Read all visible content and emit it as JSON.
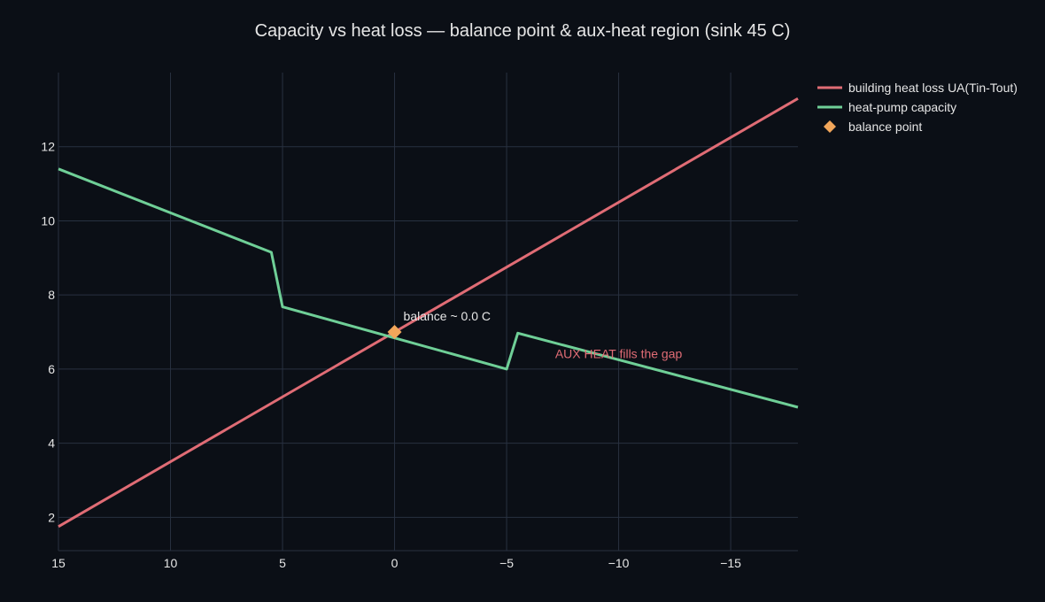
{
  "chart_data": {
    "type": "line",
    "title": "Capacity vs heat loss — balance point & aux-heat region (sink 45 C)",
    "xlabel": "",
    "ylabel": "",
    "x_reversed": true,
    "xlim": [
      15,
      -18
    ],
    "ylim": [
      1.1,
      14
    ],
    "x_ticks": [
      15,
      10,
      5,
      0,
      -5,
      -10,
      -15
    ],
    "x_tick_labels": [
      "15",
      "10",
      "5",
      "0",
      "−5",
      "−10",
      "−15"
    ],
    "y_ticks": [
      2,
      4,
      6,
      8,
      10,
      12
    ],
    "y_tick_labels": [
      "2",
      "4",
      "6",
      "8",
      "10",
      "12"
    ],
    "grid": true,
    "legend_position": "top-right",
    "series": [
      {
        "name": "building heat loss UA(Tin-Tout)",
        "type": "line",
        "color": "#e06c75",
        "x": [
          15,
          -18
        ],
        "y": [
          1.75,
          13.3
        ]
      },
      {
        "name": "heat-pump capacity",
        "type": "line",
        "color": "#6fcf97",
        "x": [
          15,
          5.5,
          5,
          -5,
          -5.5,
          -18
        ],
        "y": [
          11.4,
          9.15,
          7.68,
          6.0,
          6.97,
          4.97
        ]
      },
      {
        "name": "balance point",
        "type": "scatter",
        "marker": "diamond",
        "color": "#f2a65a",
        "x": [
          0
        ],
        "y": [
          7.0
        ]
      }
    ],
    "annotations": [
      {
        "text": "balance ~ 0.0 C",
        "x": 0,
        "y": 7.0,
        "color": "#e6e6e6"
      },
      {
        "text": "AUX HEAT fills the gap",
        "x": -10,
        "y": 6.7,
        "color": "#e06c75"
      }
    ]
  }
}
